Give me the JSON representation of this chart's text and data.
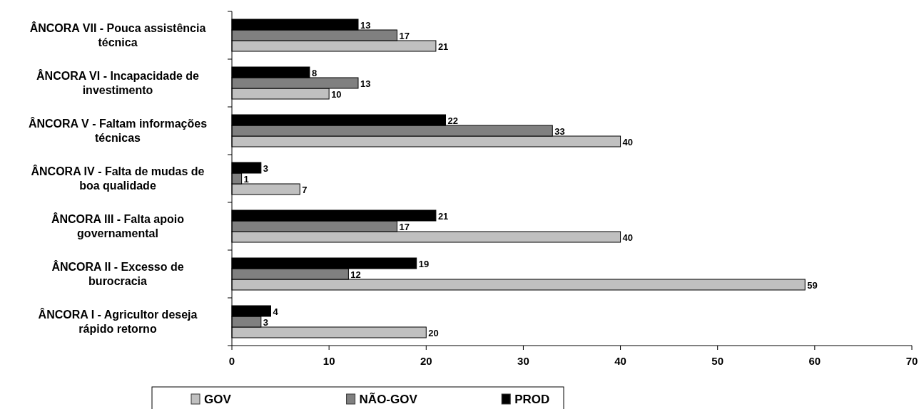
{
  "chart_data": {
    "type": "bar",
    "orientation": "horizontal",
    "categories": [
      "ÂNCORA VII - Pouca assistência técnica",
      "ÂNCORA VI - Incapacidade de investimento",
      "ÂNCORA V - Faltam informações técnicas",
      "ÂNCORA IV - Falta de mudas de boa qualidade",
      "ÂNCORA III - Falta apoio governamental",
      "ÂNCORA II - Excesso de burocracia",
      "ÂNCORA I - Agricultor deseja rápido retorno"
    ],
    "series": [
      {
        "name": "GOV",
        "color": "#c0c0c0",
        "values": [
          21,
          10,
          40,
          7,
          40,
          59,
          20
        ]
      },
      {
        "name": "NÃO-GOV",
        "color": "#808080",
        "values": [
          17,
          13,
          33,
          1,
          17,
          12,
          3
        ]
      },
      {
        "name": "PROD",
        "color": "#000000",
        "values": [
          13,
          8,
          22,
          3,
          21,
          19,
          4
        ]
      }
    ],
    "xlim": [
      0,
      70
    ],
    "xticks": [
      0,
      10,
      20,
      30,
      40,
      50,
      60,
      70
    ],
    "data_labels": true,
    "grid": false,
    "legend": "bottom"
  }
}
